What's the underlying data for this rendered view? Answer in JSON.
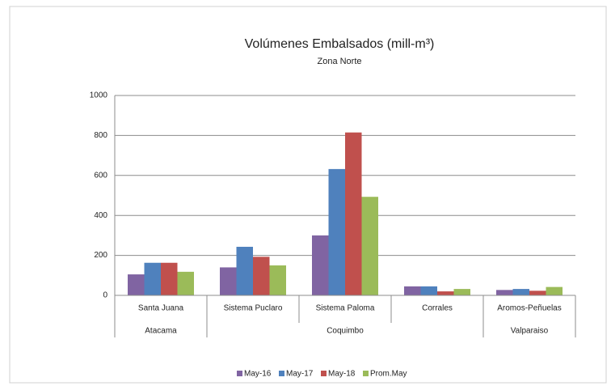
{
  "chart_data": {
    "type": "bar",
    "title": "Volúmenes Embalsados (mill-m³)",
    "subtitle": "Zona Norte",
    "categories": [
      "Santa Juana",
      "Sistema Puclaro",
      "Sistema Paloma",
      "Corrales",
      "Aromos-Peñuelas"
    ],
    "groups": [
      "Atacama",
      "Coquimbo",
      "Coquimbo",
      "Coquimbo",
      "Valparaiso"
    ],
    "series": [
      {
        "name": "May-16",
        "color": "#8064a2",
        "values": [
          105,
          140,
          300,
          45,
          27
        ]
      },
      {
        "name": "May-17",
        "color": "#4f81bd",
        "values": [
          163,
          243,
          632,
          45,
          32
        ]
      },
      {
        "name": "May-18",
        "color": "#c0504d",
        "values": [
          163,
          193,
          815,
          20,
          23
        ]
      },
      {
        "name": "Prom.May",
        "color": "#9bbb59",
        "values": [
          118,
          150,
          493,
          32,
          42
        ]
      }
    ],
    "ylim": [
      0,
      1000
    ],
    "yticks": [
      0,
      200,
      400,
      600,
      800,
      1000
    ],
    "grid": true,
    "legend": "bottom"
  }
}
